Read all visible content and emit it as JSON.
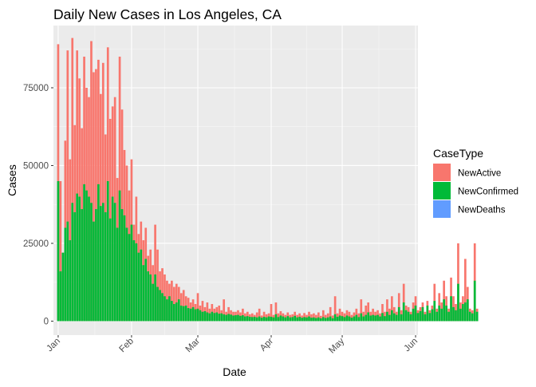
{
  "chart_data": {
    "type": "bar",
    "stacked": true,
    "title": "Daily New Cases in Los Angeles, CA",
    "xlabel": "Date",
    "ylabel": "Cases",
    "x_ticks": [
      "Jan",
      "Feb",
      "Mar",
      "Apr",
      "May",
      "Jun"
    ],
    "x_tick_dates": [
      "2021-01-01",
      "2021-02-01",
      "2021-03-01",
      "2021-04-01",
      "2021-05-01",
      "2021-06-01"
    ],
    "y_ticks": [
      0,
      25000,
      50000,
      75000
    ],
    "y_tick_labels": [
      "0",
      "25000",
      "50000",
      "75000"
    ],
    "ylim": [
      -4500,
      95000
    ],
    "xlim": [
      "2020-12-30",
      "2021-06-02"
    ],
    "x_start_date": "2021-01-01",
    "grid": true,
    "legend_title": "CaseType",
    "legend_position": "right",
    "series": [
      {
        "name": "NewActive",
        "color": "#F8766D",
        "values": [
          89000,
          45000,
          22000,
          58000,
          87000,
          52000,
          91000,
          63000,
          87000,
          78000,
          62000,
          85000,
          75000,
          72000,
          90000,
          80000,
          81000,
          84000,
          73000,
          83000,
          60000,
          88000,
          65000,
          69000,
          72000,
          46000,
          85000,
          68000,
          55000,
          50000,
          42000,
          52000,
          31000,
          40000,
          28000,
          32000,
          26000,
          30000,
          21000,
          23000,
          18000,
          31000,
          23000,
          16000,
          17000,
          15000,
          13000,
          12000,
          13000,
          11000,
          12000,
          11000,
          9000,
          10000,
          8000,
          7500,
          6000,
          7000,
          5500,
          9000,
          5000,
          6500,
          4500,
          6000,
          4000,
          5500,
          4000,
          4500,
          5000,
          3500,
          7000,
          3000,
          4500,
          3500,
          3000,
          3000,
          3500,
          2800,
          4000,
          2500,
          3000,
          2200,
          2500,
          2000,
          2800,
          4000,
          1800,
          3000,
          2200,
          2500,
          5500,
          2000,
          6000,
          2500,
          3200,
          2500,
          2000,
          2800,
          2000,
          2200,
          3000,
          2000,
          2500,
          1800,
          2600,
          2000,
          3000,
          2200,
          2500,
          2000,
          2800,
          1700,
          3500,
          2000,
          2500,
          4500,
          1800,
          8000,
          2500,
          4000,
          3000,
          2500,
          3500,
          3000,
          2000,
          2800,
          4000,
          2500,
          7000,
          3000,
          5000,
          6000,
          3000,
          4000,
          3000,
          3500,
          2500,
          5500,
          3000,
          7000,
          4000,
          8000,
          4500,
          3000,
          9000,
          3500,
          12000,
          5000,
          4500,
          3000,
          6000,
          8000,
          3500,
          4500,
          6000,
          3000,
          6500,
          3500,
          5000,
          12000,
          4000,
          9000,
          6000,
          13000,
          8000,
          4000,
          14000,
          8000,
          5500,
          25000,
          6000,
          8000,
          20000,
          11000,
          4000,
          3500,
          25000,
          4000
        ]
      },
      {
        "name": "NewConfirmed",
        "color": "#00BA38",
        "values": [
          45000,
          16000,
          22000,
          30000,
          32000,
          26000,
          38000,
          35000,
          41000,
          40000,
          36000,
          44000,
          42000,
          40000,
          38000,
          32000,
          36000,
          44000,
          37000,
          38000,
          35000,
          45000,
          33000,
          40000,
          38000,
          30000,
          42000,
          36000,
          34000,
          30000,
          28000,
          31000,
          26000,
          25000,
          22000,
          23000,
          18000,
          20000,
          16000,
          15000,
          12000,
          15000,
          11000,
          10000,
          9000,
          8000,
          7000,
          8000,
          6500,
          5500,
          6000,
          7000,
          5000,
          4800,
          5000,
          4200,
          4000,
          4500,
          3800,
          4000,
          3500,
          3000,
          3200,
          2800,
          2500,
          3000,
          2600,
          2800,
          2400,
          2500,
          2200,
          2000,
          2300,
          2100,
          1800,
          1900,
          2000,
          1700,
          1900,
          1500,
          1600,
          1400,
          1300,
          1400,
          1200,
          1500,
          1100,
          1400,
          1200,
          1500,
          1400,
          1200,
          2200,
          1300,
          1800,
          1500,
          1200,
          1600,
          1200,
          1300,
          1700,
          1200,
          1400,
          1100,
          1300,
          1200,
          1500,
          1100,
          1200,
          1000,
          1200,
          900,
          1300,
          1000,
          1200,
          1500,
          900,
          2200,
          1400,
          1800,
          1600,
          1300,
          1800,
          1500,
          1100,
          1500,
          2000,
          1300,
          2500,
          1500,
          2000,
          2800,
          1800,
          2000,
          1800,
          2000,
          1500,
          2600,
          1600,
          3000,
          2000,
          3500,
          2500,
          2000,
          4500,
          2200,
          6000,
          3500,
          3000,
          2200,
          4000,
          5000,
          2600,
          3200,
          4500,
          2200,
          5000,
          2600,
          3800,
          6500,
          3000,
          5000,
          4000,
          7000,
          5000,
          3000,
          8000,
          4500,
          3500,
          12000,
          4000,
          5500,
          6000,
          7000,
          3000,
          2500,
          13000,
          3000
        ]
      },
      {
        "name": "NewDeaths",
        "color": "#619CFF",
        "values": []
      }
    ]
  }
}
